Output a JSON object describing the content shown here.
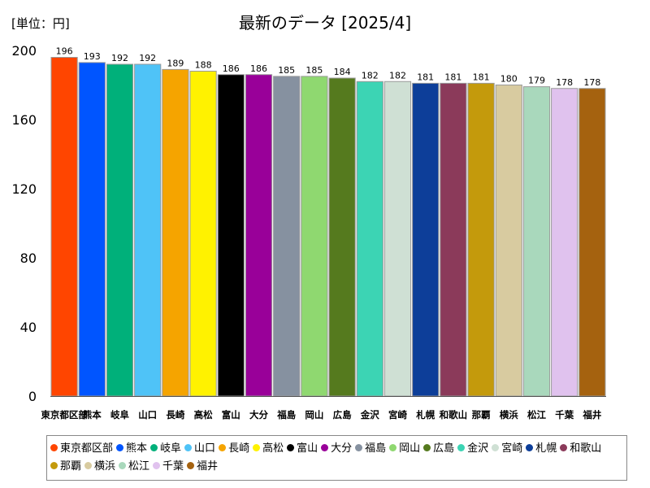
{
  "unit_label": "[単位：円]",
  "chart_data": {
    "type": "bar",
    "title": "最新のデータ [2025/4]",
    "categories": [
      "東京都区部",
      "熊本",
      "岐阜",
      "山口",
      "長崎",
      "高松",
      "富山",
      "大分",
      "福島",
      "岡山",
      "広島",
      "金沢",
      "宮崎",
      "札幌",
      "和歌山",
      "那覇",
      "横浜",
      "松江",
      "千葉",
      "福井"
    ],
    "values": [
      196,
      193,
      192,
      192,
      189,
      188,
      186,
      186,
      185,
      185,
      184,
      182,
      182,
      181,
      181,
      181,
      180,
      179,
      178,
      178
    ],
    "colors": [
      "#ff4500",
      "#0055ff",
      "#00b07a",
      "#4fc3f7",
      "#f5a400",
      "#fff200",
      "#000000",
      "#990099",
      "#8691a0",
      "#8fd870",
      "#557a1e",
      "#3cd4b4",
      "#cfe0d4",
      "#0d3e99",
      "#8b3a5a",
      "#c49a0c",
      "#d8cba0",
      "#a9d8bc",
      "#e0c2ee",
      "#a5620f"
    ],
    "yticks": [
      0,
      40,
      80,
      120,
      160,
      200
    ],
    "ylim": [
      0,
      200
    ],
    "grid": false,
    "legend_position": "bottom"
  }
}
